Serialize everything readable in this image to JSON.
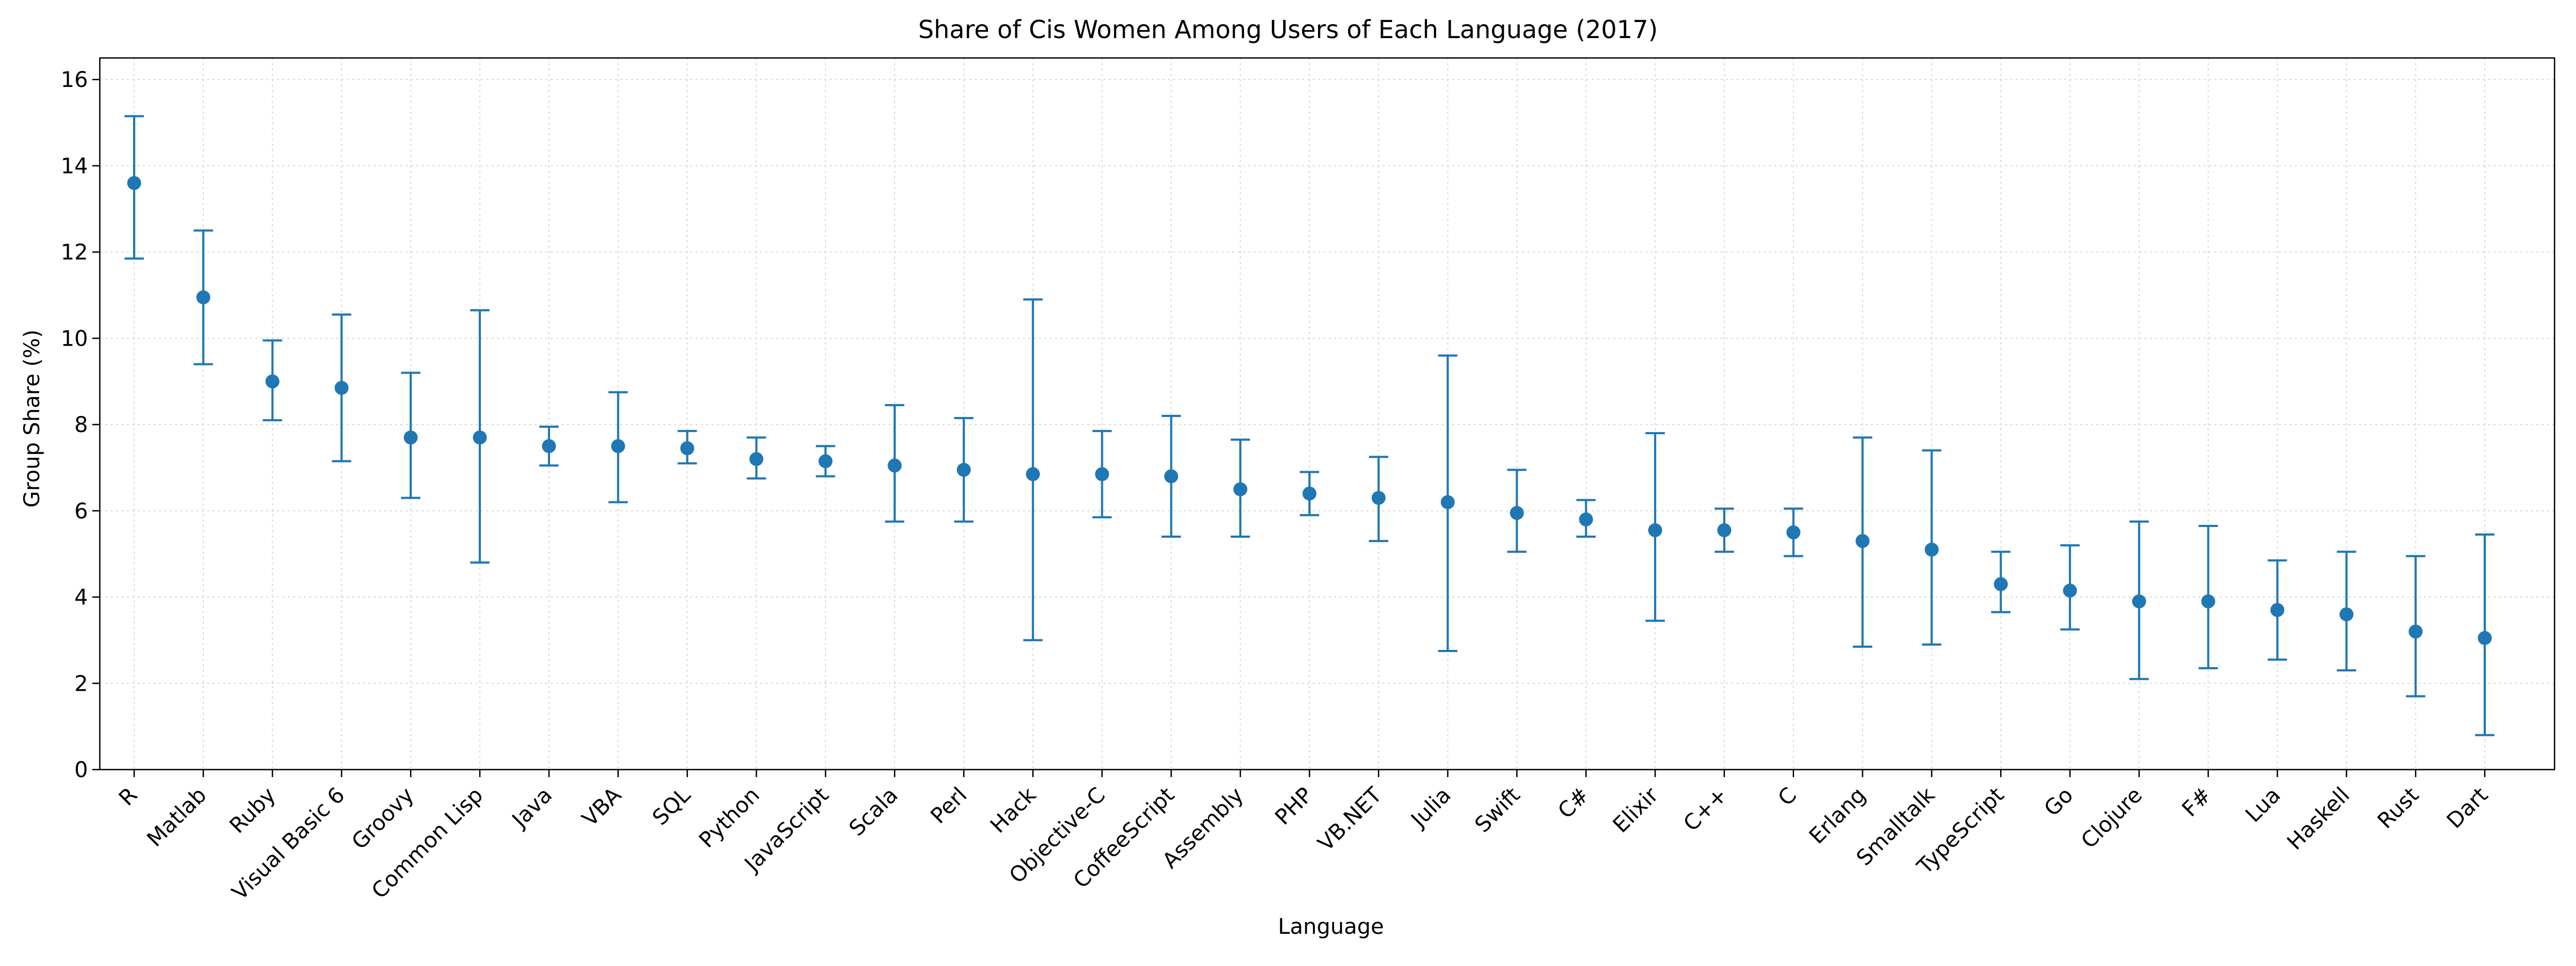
{
  "chart_data": {
    "type": "scatter",
    "subtype": "errorbar",
    "title": "Share of Cis Women Among Users of Each Language (2017)",
    "xlabel": "Language",
    "ylabel": "Group Share (%)",
    "ylim": [
      0,
      16.5
    ],
    "yticks": [
      0,
      2,
      4,
      6,
      8,
      10,
      12,
      14,
      16
    ],
    "grid": true,
    "legend": "none",
    "colors": {
      "series": "#1f77b4",
      "grid": "#d9d9d9",
      "axis": "#000000"
    },
    "categories": [
      "R",
      "Matlab",
      "Ruby",
      "Visual Basic 6",
      "Groovy",
      "Common Lisp",
      "Java",
      "VBA",
      "SQL",
      "Python",
      "JavaScript",
      "Scala",
      "Perl",
      "Hack",
      "Objective-C",
      "CoffeeScript",
      "Assembly",
      "PHP",
      "VB.NET",
      "Julia",
      "Swift",
      "C#",
      "Elixir",
      "C++",
      "C",
      "Erlang",
      "Smalltalk",
      "TypeScript",
      "Go",
      "Clojure",
      "F#",
      "Lua",
      "Haskell",
      "Rust",
      "Dart"
    ],
    "values": [
      13.6,
      10.95,
      9.0,
      8.85,
      7.7,
      7.7,
      7.5,
      7.5,
      7.45,
      7.2,
      7.15,
      7.05,
      6.95,
      6.85,
      6.85,
      6.8,
      6.5,
      6.4,
      6.3,
      6.2,
      5.95,
      5.8,
      5.55,
      5.55,
      5.5,
      5.3,
      5.1,
      4.3,
      4.15,
      3.9,
      3.9,
      3.7,
      3.6,
      3.2,
      3.05
    ],
    "lower": [
      11.85,
      9.4,
      8.1,
      7.15,
      6.3,
      4.8,
      7.05,
      6.2,
      7.1,
      6.75,
      6.8,
      5.75,
      5.75,
      3.0,
      5.85,
      5.4,
      5.4,
      5.9,
      5.3,
      2.75,
      5.05,
      5.4,
      3.45,
      5.05,
      4.95,
      2.85,
      2.9,
      3.65,
      3.25,
      2.1,
      2.35,
      2.55,
      2.3,
      1.7,
      0.8
    ],
    "upper": [
      15.15,
      12.5,
      9.95,
      10.55,
      9.2,
      10.65,
      7.95,
      8.75,
      7.85,
      7.7,
      7.5,
      8.45,
      8.15,
      10.9,
      7.85,
      8.2,
      7.65,
      6.9,
      7.25,
      9.6,
      6.95,
      6.25,
      7.8,
      6.05,
      6.05,
      7.7,
      7.4,
      5.05,
      5.2,
      5.75,
      5.65,
      4.85,
      5.05,
      4.95,
      5.45
    ]
  }
}
